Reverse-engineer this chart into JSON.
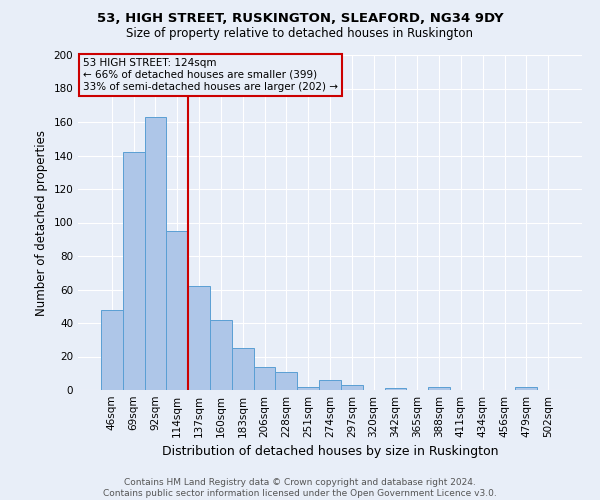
{
  "title1": "53, HIGH STREET, RUSKINGTON, SLEAFORD, NG34 9DY",
  "title2": "Size of property relative to detached houses in Ruskington",
  "xlabel": "Distribution of detached houses by size in Ruskington",
  "ylabel": "Number of detached properties",
  "footer1": "Contains HM Land Registry data © Crown copyright and database right 2024.",
  "footer2": "Contains public sector information licensed under the Open Government Licence v3.0.",
  "bin_labels": [
    "46sqm",
    "69sqm",
    "92sqm",
    "114sqm",
    "137sqm",
    "160sqm",
    "183sqm",
    "206sqm",
    "228sqm",
    "251sqm",
    "274sqm",
    "297sqm",
    "320sqm",
    "342sqm",
    "365sqm",
    "388sqm",
    "411sqm",
    "434sqm",
    "456sqm",
    "479sqm",
    "502sqm"
  ],
  "bar_heights": [
    48,
    142,
    163,
    95,
    62,
    42,
    25,
    14,
    11,
    2,
    6,
    3,
    0,
    1,
    0,
    2,
    0,
    0,
    0,
    2,
    0
  ],
  "bar_color": "#aec6e8",
  "bar_edge_color": "#5a9fd4",
  "background_color": "#e8eef8",
  "grid_color": "#ffffff",
  "annotation_text": "53 HIGH STREET: 124sqm\n← 66% of detached houses are smaller (399)\n33% of semi-detached houses are larger (202) →",
  "annotation_box_edge": "#cc0000",
  "vline_color": "#cc0000",
  "ylim": [
    0,
    200
  ],
  "yticks": [
    0,
    20,
    40,
    60,
    80,
    100,
    120,
    140,
    160,
    180,
    200
  ],
  "title1_fontsize": 9.5,
  "title2_fontsize": 8.5,
  "ylabel_fontsize": 8.5,
  "xlabel_fontsize": 9.0,
  "tick_fontsize": 7.5,
  "footer_fontsize": 6.5,
  "footer_color": "#555555"
}
